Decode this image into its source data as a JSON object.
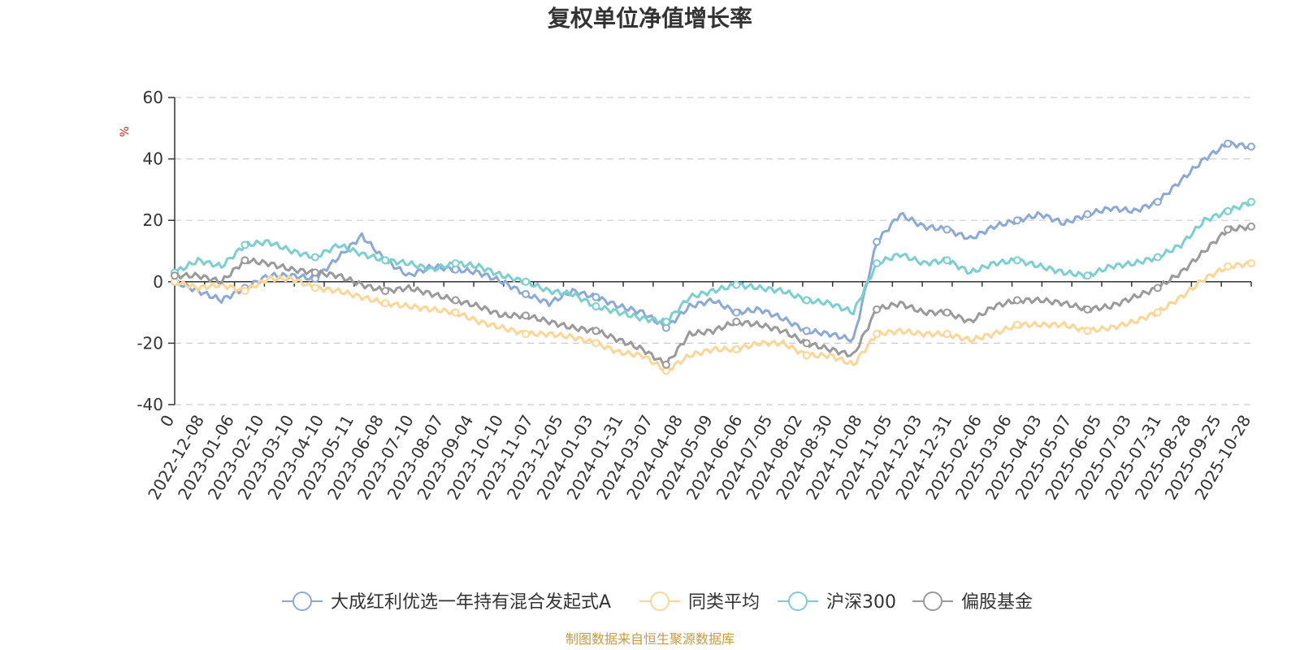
{
  "chart_data": {
    "type": "line",
    "title": "复权单位净值增长率",
    "y_unit": "%",
    "ylim": [
      -40,
      60
    ],
    "y_ticks": [
      "60",
      "40",
      "20",
      "0",
      "-20",
      "-40"
    ],
    "x_ticks": [
      "0",
      "2022-12-08",
      "2023-01-06",
      "2023-02-10",
      "2023-03-10",
      "2023-04-10",
      "2023-05-11",
      "2023-06-08",
      "2023-07-10",
      "2023-08-07",
      "2023-09-04",
      "2023-10-10",
      "2023-11-07",
      "2023-12-05",
      "2024-01-03",
      "2024-01-31",
      "2024-03-07",
      "2024-04-08",
      "2024-05-09",
      "2024-06-06",
      "2024-07-05",
      "2024-08-02",
      "2024-08-30",
      "2024-10-08",
      "2024-11-05",
      "2024-12-03",
      "2024-12-31",
      "2025-02-06",
      "2025-03-06",
      "2025-04-03",
      "2025-05-07",
      "2025-06-05",
      "2025-07-03",
      "2025-07-31",
      "2025-08-28",
      "2025-09-25",
      "2025-10-28"
    ],
    "grid": true,
    "legend_position": "bottom",
    "series": [
      {
        "name": "大成红利优选一年持有混合发起式A",
        "color": "#8ba9d8",
        "values": [
          0,
          -3,
          -6,
          -2,
          2,
          2,
          1,
          8,
          15,
          7,
          2,
          5,
          4,
          3,
          0,
          -4,
          -7,
          -3,
          -5,
          -8,
          -10,
          -15,
          -8,
          -6,
          -10,
          -9,
          -12,
          -16,
          -17,
          -19,
          13,
          22,
          18,
          17,
          14,
          18,
          20,
          22,
          19,
          22,
          24,
          23,
          26,
          33,
          40,
          45,
          44
        ]
      },
      {
        "name": "同类平均",
        "color": "#fdd595",
        "values": [
          0,
          -2,
          -1,
          -3,
          1,
          1,
          -2,
          -3,
          -5,
          -7,
          -8,
          -9,
          -10,
          -13,
          -15,
          -17,
          -17,
          -18,
          -20,
          -23,
          -24,
          -29,
          -24,
          -22,
          -22,
          -20,
          -20,
          -24,
          -24,
          -27,
          -17,
          -16,
          -17,
          -17,
          -19,
          -17,
          -14,
          -14,
          -14,
          -16,
          -15,
          -13,
          -10,
          -5,
          1,
          5,
          6
        ]
      },
      {
        "name": "沪深300",
        "color": "#7ccfcf",
        "values": [
          3,
          7,
          5,
          12,
          13,
          10,
          8,
          12,
          9,
          7,
          6,
          4,
          6,
          5,
          2,
          0,
          -3,
          -4,
          -8,
          -10,
          -12,
          -13,
          -5,
          -3,
          -1,
          -2,
          -3,
          -6,
          -7,
          -10,
          6,
          9,
          6,
          7,
          3,
          6,
          7,
          5,
          3,
          2,
          5,
          6,
          8,
          12,
          20,
          23,
          26
        ]
      },
      {
        "name": "偏股基金",
        "color": "#9a9a9a",
        "values": [
          2,
          2,
          0,
          7,
          6,
          4,
          3,
          2,
          -1,
          -3,
          -2,
          -4,
          -6,
          -8,
          -11,
          -11,
          -13,
          -15,
          -16,
          -19,
          -22,
          -27,
          -17,
          -16,
          -13,
          -14,
          -16,
          -20,
          -22,
          -24,
          -9,
          -7,
          -10,
          -10,
          -13,
          -8,
          -6,
          -6,
          -7,
          -9,
          -8,
          -5,
          -2,
          3,
          10,
          17,
          18
        ]
      }
    ]
  },
  "footer": {
    "source": "制图数据来自恒生聚源数据库",
    "source_color": "#c89a3a"
  }
}
